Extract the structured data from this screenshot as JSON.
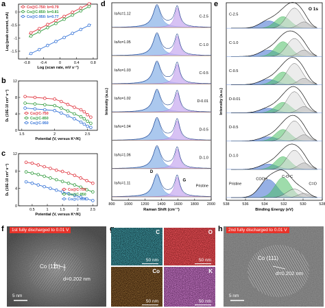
{
  "panels": {
    "a": "a",
    "b": "b",
    "c": "c",
    "d": "d",
    "e": "e",
    "f": "f",
    "g": "g",
    "h": "h"
  },
  "chart_data": [
    {
      "panel": "a",
      "type": "scatter",
      "xlabel": "Log (scan rate, mV s⁻¹)",
      "ylabel": "Log (peak current, mA)",
      "xlim": [
        -1.0,
        0.9
      ],
      "ylim": [
        -1.8,
        0.3
      ],
      "xticks": [
        -0.8,
        -0.4,
        0.0,
        0.4,
        0.8
      ],
      "yticks": [
        -1.5,
        -1.0,
        -0.5,
        0.0
      ],
      "legend_position": "top-left",
      "series": [
        {
          "name": "Co@C-750: b=0.79",
          "color": "#e0303a",
          "x": [
            -0.7,
            -0.5,
            -0.3,
            -0.1,
            0.1,
            0.3,
            0.5,
            0.7
          ],
          "y": [
            -0.8,
            -0.64,
            -0.48,
            -0.33,
            -0.17,
            -0.01,
            0.15,
            0.31
          ]
        },
        {
          "name": "Co@C-850: b=0.81",
          "color": "#2e9a3a",
          "x": [
            -0.7,
            -0.5,
            -0.3,
            -0.1,
            0.1,
            0.3,
            0.5,
            0.7
          ],
          "y": [
            -0.92,
            -0.76,
            -0.6,
            -0.44,
            -0.28,
            -0.12,
            0.04,
            0.21
          ]
        },
        {
          "name": "Co@C-950: b=0.77",
          "color": "#2f6fd6",
          "x": [
            -0.7,
            -0.5,
            -0.3,
            -0.1,
            0.1,
            0.3,
            0.5,
            0.7
          ],
          "y": [
            -1.59,
            -1.44,
            -1.28,
            -1.13,
            -0.98,
            -0.82,
            -0.67,
            -0.51
          ]
        }
      ]
    },
    {
      "panel": "b",
      "type": "line",
      "xlabel": "Potential (V, versus K⁺/K)",
      "ylabel": "Dₖ (10E-10 cm² s⁻¹)",
      "xlim": [
        1.45,
        2.65
      ],
      "ylim": [
        0,
        12
      ],
      "xticks": [
        1.5,
        2.0,
        2.5
      ],
      "yticks": [
        0,
        4,
        8,
        12
      ],
      "legend_position": "bottom-left",
      "series": [
        {
          "name": "Co@C-750",
          "color": "#e0303a",
          "x": [
            1.55,
            1.7,
            1.85,
            2.0,
            2.1,
            2.2,
            2.3,
            2.4,
            2.45,
            2.5,
            2.55
          ],
          "y": [
            8.2,
            8.0,
            7.8,
            7.6,
            7.0,
            6.3,
            5.6,
            5.0,
            4.5,
            3.8,
            3.2
          ]
        },
        {
          "name": "Co@C-850",
          "color": "#2e9a3a",
          "x": [
            1.55,
            1.7,
            1.85,
            2.0,
            2.1,
            2.2,
            2.3,
            2.4,
            2.45,
            2.5,
            2.55
          ],
          "y": [
            6.6,
            6.4,
            6.2,
            6.0,
            5.4,
            4.7,
            4.0,
            3.3,
            2.8,
            2.2,
            1.7
          ]
        },
        {
          "name": "Co@C-950",
          "color": "#2f6fd6",
          "x": [
            1.55,
            1.7,
            1.85,
            2.0,
            2.1,
            2.2,
            2.3,
            2.4,
            2.45,
            2.5,
            2.55
          ],
          "y": [
            5.4,
            5.2,
            5.0,
            4.8,
            4.2,
            3.5,
            2.8,
            2.0,
            1.5,
            1.0,
            0.7
          ]
        }
      ]
    },
    {
      "panel": "c",
      "type": "line",
      "xlabel": "Potential (V, versus K⁺/K)",
      "ylabel": "Dₖ (10E-10 cm² s⁻¹)",
      "xlim": [
        0.05,
        2.65
      ],
      "ylim": [
        0,
        12
      ],
      "xticks": [
        0.5,
        1.0,
        1.5,
        2.0,
        2.5
      ],
      "yticks": [
        0,
        4,
        8,
        12
      ],
      "legend_position": "top-right",
      "series": [
        {
          "name": "Co@C-750",
          "color": "#e0303a",
          "x": [
            0.3,
            0.5,
            0.7,
            0.9,
            1.1,
            1.3,
            1.5,
            1.7,
            1.9,
            2.1,
            2.3,
            2.5
          ],
          "y": [
            10.0,
            9.8,
            9.4,
            9.0,
            8.6,
            8.2,
            7.9,
            7.5,
            7.0,
            6.4,
            5.8,
            5.2
          ]
        },
        {
          "name": "Co@C-850",
          "color": "#2e9a3a",
          "x": [
            0.3,
            0.5,
            0.7,
            0.9,
            1.1,
            1.3,
            1.5,
            1.7,
            1.9,
            2.1,
            2.3,
            2.5
          ],
          "y": [
            7.8,
            7.5,
            7.2,
            6.8,
            6.4,
            6.0,
            5.6,
            5.2,
            4.8,
            4.3,
            3.7,
            3.2
          ]
        },
        {
          "name": "Co@C-950",
          "color": "#2f6fd6",
          "x": [
            0.3,
            0.5,
            0.7,
            0.9,
            1.1,
            1.3,
            1.5,
            1.7,
            1.9,
            2.1,
            2.3,
            2.5
          ],
          "y": [
            5.5,
            5.2,
            4.8,
            4.4,
            4.0,
            3.6,
            3.2,
            2.8,
            2.4,
            2.0,
            1.6,
            1.2
          ]
        }
      ]
    },
    {
      "panel": "d",
      "type": "line",
      "xlabel": "Raman Shift (cm⁻¹)",
      "ylabel": "Intensity (a.u.)",
      "xlim": [
        800,
        2000
      ],
      "xticks": [
        800,
        1000,
        1200,
        1400,
        1600,
        1800,
        2000
      ],
      "peak_D_position": 1345,
      "peak_G_position": 1590,
      "peak_labels": [
        "D",
        "G"
      ],
      "series": [
        {
          "name": "C-2.5",
          "ratio_label": "Iᴅ/Iɢ=1.12"
        },
        {
          "name": "C-1.0",
          "ratio_label": "Iᴅ/Iɢ=1.05"
        },
        {
          "name": "C-0.5",
          "ratio_label": "Iᴅ/Iɢ=1.03"
        },
        {
          "name": "D-0.01",
          "ratio_label": "Iᴅ/Iɢ=1.02"
        },
        {
          "name": "D-0.5",
          "ratio_label": "Iᴅ/Iɢ=1.04"
        },
        {
          "name": "D-1.0",
          "ratio_label": "Iᴅ/Iɢ=1.06"
        },
        {
          "name": "Pristine",
          "ratio_label": "Iᴅ/Iɢ=1.11"
        }
      ]
    },
    {
      "panel": "e",
      "type": "line",
      "title": "O 1s",
      "xlabel": "Binding Energy (eV)",
      "ylabel": "Intensity (a.u.)",
      "xlim": [
        538,
        528
      ],
      "xticks": [
        538,
        536,
        534,
        532,
        530,
        528
      ],
      "series": [
        {
          "name": "C-2.5"
        },
        {
          "name": "C-1.0"
        },
        {
          "name": "C-0.5"
        },
        {
          "name": "D-0.01"
        },
        {
          "name": "D-0.5"
        },
        {
          "name": "D-1.0"
        },
        {
          "name": "Pristine"
        }
      ],
      "component_labels": [
        "COOH",
        "C-O-C",
        "C=O"
      ]
    }
  ],
  "figure_text": {
    "a_ylabel": "Log (peak current, mA)",
    "a_xlabel": "Log (scan rate, mV s⁻¹)",
    "b_ylabel": "Dₖ (10E-10 cm² s⁻¹)",
    "b_xlabel": "Potential (V, versus K⁺/K)",
    "c_ylabel": "Dₖ (10E-10 cm² s⁻¹)",
    "c_xlabel": "Potential (V, versus K⁺/K)",
    "d_xlabel": "Raman Shift (cm⁻¹)",
    "d_ylabel": "Intensity (a.u.)",
    "e_xlabel": "Binding Energy (eV)",
    "e_ylabel": "Intensity (a.u.)",
    "e_title": "O 1s",
    "d_peak_D": "D",
    "d_peak_G": "G",
    "e_cooh": "COOH",
    "e_coc": "C-O-C",
    "e_cdo": "C=O"
  },
  "tem": {
    "f_banner": "1st fully discharged to 0.01 V",
    "f_plane": "Co (111)",
    "f_dspacing": "d=0.202 nm",
    "f_scale": "5 nm",
    "h_banner": "2nd fully discharged to 0.01 V",
    "h_plane": "Co (111)",
    "h_dspacing": "d=0.202 nm",
    "h_scale": "5 nm"
  },
  "maps": [
    {
      "element": "C",
      "scale": "50 nm",
      "color": "#1fb3c7"
    },
    {
      "element": "O",
      "scale": "50 nm",
      "color": "#e0202a"
    },
    {
      "element": "Co",
      "scale": "50 nm",
      "color": "#e07a1f"
    },
    {
      "element": "K",
      "scale": "50 nm",
      "color": "#c83ec8"
    }
  ],
  "colors": {
    "red": "#e0303a",
    "green": "#2e9a3a",
    "blue": "#2f6fd6",
    "raman_blue": "#3f7fd2",
    "raman_purple": "#9b6bd6",
    "xps_black": "#222222",
    "xps_green": "#3fae55",
    "xps_blue": "#2f5fc8"
  }
}
